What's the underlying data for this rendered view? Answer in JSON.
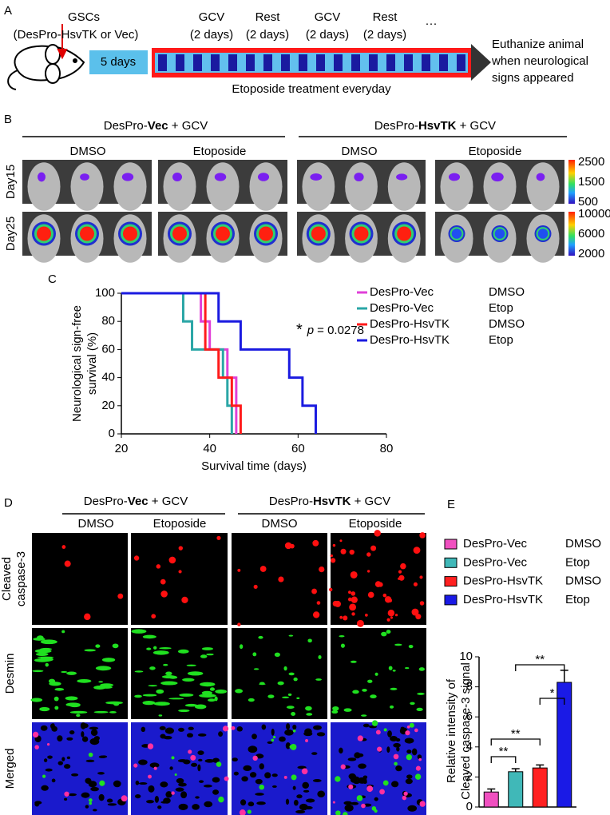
{
  "panel_a": {
    "label": "A",
    "gscs": "GSCs",
    "gscs_detail": "(DesPro-HsvTK or Vec)",
    "pre_period": "5 days",
    "schedule": [
      {
        "drug": "GCV",
        "duration": "(2 days)"
      },
      {
        "drug": "Rest",
        "duration": "(2 days)"
      },
      {
        "drug": "GCV",
        "duration": "(2 days)"
      },
      {
        "drug": "Rest",
        "duration": "(2 days)"
      }
    ],
    "ellipsis": "···",
    "treatment": "Etoposide treatment everyday",
    "endpoint": [
      "Euthanize animal",
      "when neurological",
      "signs appeared"
    ]
  },
  "panel_b": {
    "label": "B",
    "groups": [
      {
        "prefix": "DesPro-",
        "bold": "Vec",
        "suffix": " + GCV",
        "conditions": [
          "DMSO",
          "Etoposide"
        ]
      },
      {
        "prefix": "DesPro-",
        "bold": "HsvTK",
        "suffix": " + GCV",
        "conditions": [
          "DMSO",
          "Etoposide"
        ]
      }
    ],
    "rows": [
      "Day15",
      "Day25"
    ],
    "colorbars": [
      [
        2500,
        1500,
        500
      ],
      [
        10000,
        6000,
        2000
      ]
    ]
  },
  "panel_d": {
    "label": "D",
    "groups": [
      {
        "prefix": "DesPro-",
        "bold": "Vec",
        "suffix": " + GCV",
        "conditions": [
          "DMSO",
          "Etoposide"
        ]
      },
      {
        "prefix": "DesPro-",
        "bold": "HsvTK",
        "suffix": " + GCV",
        "conditions": [
          "DMSO",
          "Etoposide"
        ]
      }
    ],
    "rows": [
      {
        "lines": [
          "Cleaved",
          "caspase-3"
        ],
        "color": "#ff2020"
      },
      {
        "lines": [
          "Desmin"
        ],
        "color": "#22cc22"
      },
      {
        "lines": [
          "Merged"
        ],
        "color": "#d020d0"
      }
    ]
  },
  "chart_data": [
    {
      "type": "line",
      "step": true,
      "panel_label": "C",
      "x_label": "Survival time (days)",
      "y_label": [
        "Neurological sign-free",
        "survival (%)"
      ],
      "xlim": [
        20,
        80
      ],
      "xticks": [
        20,
        40,
        60,
        80
      ],
      "ylim": [
        0,
        100
      ],
      "yticks": [
        0,
        20,
        40,
        60,
        80,
        100
      ],
      "annotation": {
        "star": "*",
        "p": "p",
        "value": "= 0.0278",
        "color": "#1a1ae0"
      },
      "series": [
        {
          "name": "DesPro-Vec",
          "treatment": "DMSO",
          "color": "#e040d8",
          "x": [
            20,
            38,
            40,
            44,
            46
          ],
          "values": [
            100,
            80,
            60,
            40,
            0
          ]
        },
        {
          "name": "DesPro-Vec",
          "treatment": "Etop",
          "color": "#2aa6a6",
          "x": [
            20,
            34,
            36,
            43,
            44,
            45
          ],
          "values": [
            100,
            80,
            60,
            40,
            20,
            0
          ]
        },
        {
          "name": "DesPro-HsvTK",
          "treatment": "DMSO",
          "color": "#ff1a1a",
          "x": [
            20,
            39,
            42,
            45,
            47
          ],
          "values": [
            100,
            60,
            40,
            20,
            0
          ]
        },
        {
          "name": "DesPro-HsvTK",
          "treatment": "Etop",
          "color": "#1a1ae0",
          "x": [
            20,
            42,
            47,
            58,
            61,
            64
          ],
          "values": [
            100,
            80,
            60,
            40,
            20,
            0
          ]
        }
      ]
    },
    {
      "type": "bar",
      "panel_label": "E",
      "y_label": [
        "Relative intensity of",
        "Cleaved caspase-3 signal"
      ],
      "categories": [
        null,
        null,
        null,
        null
      ],
      "legend": [
        {
          "name": "DesPro-Vec",
          "treatment": "DMSO"
        },
        {
          "name": "DesPro-Vec",
          "treatment": "Etop"
        },
        {
          "name": "DesPro-HsvTK",
          "treatment": "DMSO"
        },
        {
          "name": "DesPro-HsvTK",
          "treatment": "Etop"
        }
      ],
      "colors": [
        "#f050c0",
        "#40b8b8",
        "#ff2020",
        "#1a1ae6"
      ],
      "values": [
        1.0,
        2.35,
        2.6,
        8.3
      ],
      "errors": [
        0.2,
        0.2,
        0.2,
        0.8
      ],
      "ylim": [
        0,
        10
      ],
      "yticks": [
        0,
        2,
        4,
        6,
        8,
        10
      ],
      "significance": [
        {
          "from": 0,
          "to": 1,
          "label": "**"
        },
        {
          "from": 0,
          "to": 2,
          "label": "**"
        },
        {
          "from": 1,
          "to": 3,
          "label": "**"
        },
        {
          "from": 2,
          "to": 3,
          "label": "*"
        }
      ]
    }
  ]
}
